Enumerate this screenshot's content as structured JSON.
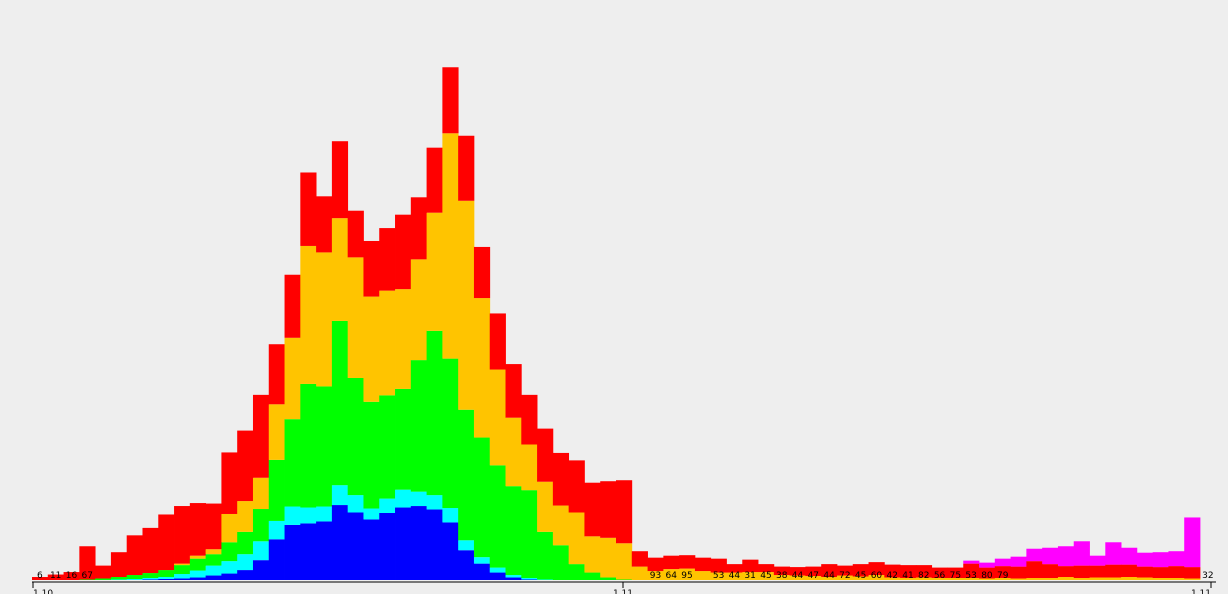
{
  "chart_data": {
    "type": "bar",
    "stacked": true,
    "title": "",
    "xlabel": "",
    "ylabel": "",
    "grid": false,
    "legend": "none",
    "background": "#eeeeee",
    "bin_count": 74,
    "ylim": [
      0,
      1100
    ],
    "series": [
      {
        "color": "#0000ff",
        "values": [
          0,
          0,
          0,
          0,
          0,
          0,
          0,
          1,
          2,
          3,
          5,
          9,
          13,
          20,
          40,
          82,
          111,
          114,
          118,
          151,
          136,
          122,
          135,
          146,
          149,
          142,
          116,
          60,
          33,
          15,
          5,
          1,
          0,
          0,
          0,
          0,
          0,
          0,
          0,
          0,
          0,
          0,
          0,
          0,
          0,
          0,
          0,
          0,
          0,
          0,
          0,
          0,
          0,
          0,
          0,
          0,
          0,
          0,
          0,
          0,
          0,
          0,
          0,
          0,
          0,
          0,
          0,
          0,
          0,
          0,
          0,
          0,
          0,
          0
        ]
      },
      {
        "color": "#00ffff",
        "values": [
          0,
          0,
          0,
          0,
          0,
          1,
          2,
          3,
          4,
          9,
          14,
          20,
          25,
          32,
          38,
          37,
          37,
          32,
          30,
          40,
          35,
          22,
          29,
          36,
          29,
          29,
          29,
          20,
          13,
          10,
          5,
          3,
          1,
          0,
          0,
          0,
          0,
          0,
          0,
          0,
          0,
          0,
          0,
          0,
          0,
          0,
          0,
          0,
          0,
          0,
          0,
          0,
          0,
          0,
          0,
          0,
          0,
          0,
          0,
          0,
          0,
          0,
          0,
          0,
          0,
          0,
          0,
          0,
          0,
          0,
          0,
          0,
          0,
          0
        ]
      },
      {
        "color": "#00ff00",
        "values": [
          0,
          0,
          0,
          1,
          3,
          5,
          8,
          10,
          14,
          18,
          24,
          23,
          38,
          45,
          65,
          123,
          176,
          249,
          242,
          331,
          236,
          215,
          208,
          203,
          265,
          331,
          301,
          263,
          241,
          206,
          179,
          177,
          96,
          70,
          32,
          15,
          5,
          1,
          0,
          0,
          0,
          0,
          0,
          0,
          0,
          0,
          0,
          0,
          0,
          0,
          0,
          0,
          0,
          0,
          0,
          0,
          0,
          0,
          0,
          0,
          0,
          0,
          0,
          0,
          0,
          0,
          0,
          0,
          0,
          0,
          0,
          0,
          0,
          0
        ]
      },
      {
        "color": "#ffc400",
        "values": [
          0,
          0,
          0,
          0,
          0,
          0,
          0,
          0,
          0,
          3,
          6,
          10,
          57,
          62,
          63,
          112,
          164,
          278,
          270,
          207,
          243,
          212,
          211,
          201,
          203,
          238,
          454,
          421,
          281,
          193,
          138,
          92,
          101,
          80,
          104,
          73,
          80,
          73,
          27,
          18,
          22,
          23,
          18,
          15,
          15,
          16,
          16,
          10,
          9,
          8,
          6,
          9,
          7,
          10,
          5,
          4,
          5,
          4,
          4,
          4,
          3,
          4,
          3,
          4,
          4,
          6,
          4,
          5,
          5,
          6,
          5,
          4,
          4,
          3
        ]
      },
      {
        "color": "#ff0000",
        "values": [
          6,
          11,
          16,
          67,
          26,
          50,
          80,
          91,
          112,
          116,
          106,
          92,
          124,
          142,
          167,
          121,
          127,
          148,
          113,
          155,
          94,
          112,
          126,
          150,
          125,
          131,
          133,
          131,
          103,
          113,
          108,
          100,
          107,
          106,
          105,
          108,
          114,
          127,
          31,
          27,
          27,
          27,
          27,
          28,
          17,
          25,
          16,
          17,
          17,
          19,
          26,
          20,
          25,
          26,
          26,
          26,
          25,
          21,
          21,
          29,
          22,
          24,
          24,
          34,
          28,
          22,
          25,
          24,
          26,
          25,
          22,
          22,
          24,
          23
        ]
      },
      {
        "color": "#ff00ff",
        "values": [
          0,
          0,
          0,
          0,
          0,
          0,
          0,
          0,
          0,
          0,
          0,
          0,
          0,
          0,
          0,
          0,
          0,
          0,
          0,
          0,
          0,
          0,
          0,
          0,
          0,
          0,
          0,
          0,
          0,
          0,
          0,
          0,
          0,
          0,
          0,
          0,
          0,
          0,
          0,
          0,
          0,
          0,
          0,
          0,
          0,
          0,
          0,
          0,
          0,
          0,
          0,
          0,
          0,
          0,
          0,
          0,
          0,
          0,
          0,
          0,
          0,
          0,
          0,
          0,
          0,
          0,
          0,
          0,
          0,
          0,
          0,
          0,
          0,
          0
        ]
      },
      {
        "color": "#ff00ff",
        "values": [
          0,
          0,
          0,
          0,
          0,
          0,
          0,
          0,
          0,
          0,
          0,
          0,
          0,
          0,
          0,
          0,
          0,
          0,
          0,
          0,
          0,
          0,
          0,
          0,
          0,
          0,
          0,
          0,
          0,
          0,
          0,
          0,
          0,
          0,
          0,
          0,
          0,
          0,
          0,
          0,
          0,
          0,
          0,
          0,
          0,
          0,
          0,
          0,
          0,
          0,
          0,
          0,
          0,
          0,
          0,
          0,
          0,
          0,
          0,
          6,
          10,
          15,
          20,
          25,
          33,
          40,
          49,
          20,
          45,
          34,
          28,
          30,
          30,
          100
        ]
      }
    ],
    "count_labels": [
      "6",
      "11",
      "16",
      "67",
      "",
      "",
      "",
      "",
      "",
      "",
      "",
      "",
      "",
      "",
      "",
      "",
      "",
      "",
      "",
      "",
      "",
      "",
      "",
      "",
      "",
      "",
      "",
      "",
      "",
      "",
      "",
      "",
      "",
      "",
      "",
      "",
      "",
      "",
      "",
      "93",
      "64",
      "95",
      "",
      "53",
      "44",
      "31",
      "45",
      "38",
      "44",
      "47",
      "44",
      "72",
      "45",
      "60",
      "42",
      "41",
      "82",
      "56",
      "75",
      "53",
      "80",
      "79",
      "",
      "",
      "",
      "",
      "",
      "",
      "",
      "",
      "",
      "",
      "",
      "",
      "32"
    ],
    "axis_tick_labels": [
      "1.10",
      "1.11",
      "1.11"
    ]
  }
}
